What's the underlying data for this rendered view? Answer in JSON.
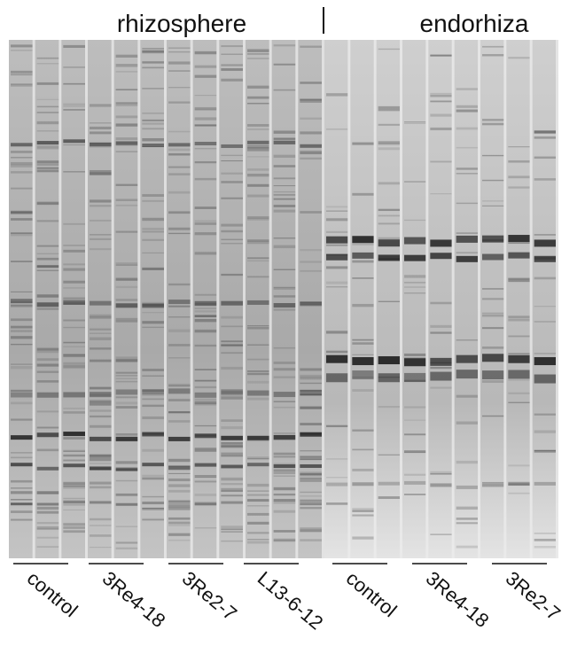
{
  "headers": [
    "rhizosphere",
    "endorhiza"
  ],
  "lane_groups": [
    "control",
    "3Re4-18",
    "3Re2-7",
    "L13-6-12",
    "control",
    "3Re4-18",
    "3Re2-7"
  ]
}
